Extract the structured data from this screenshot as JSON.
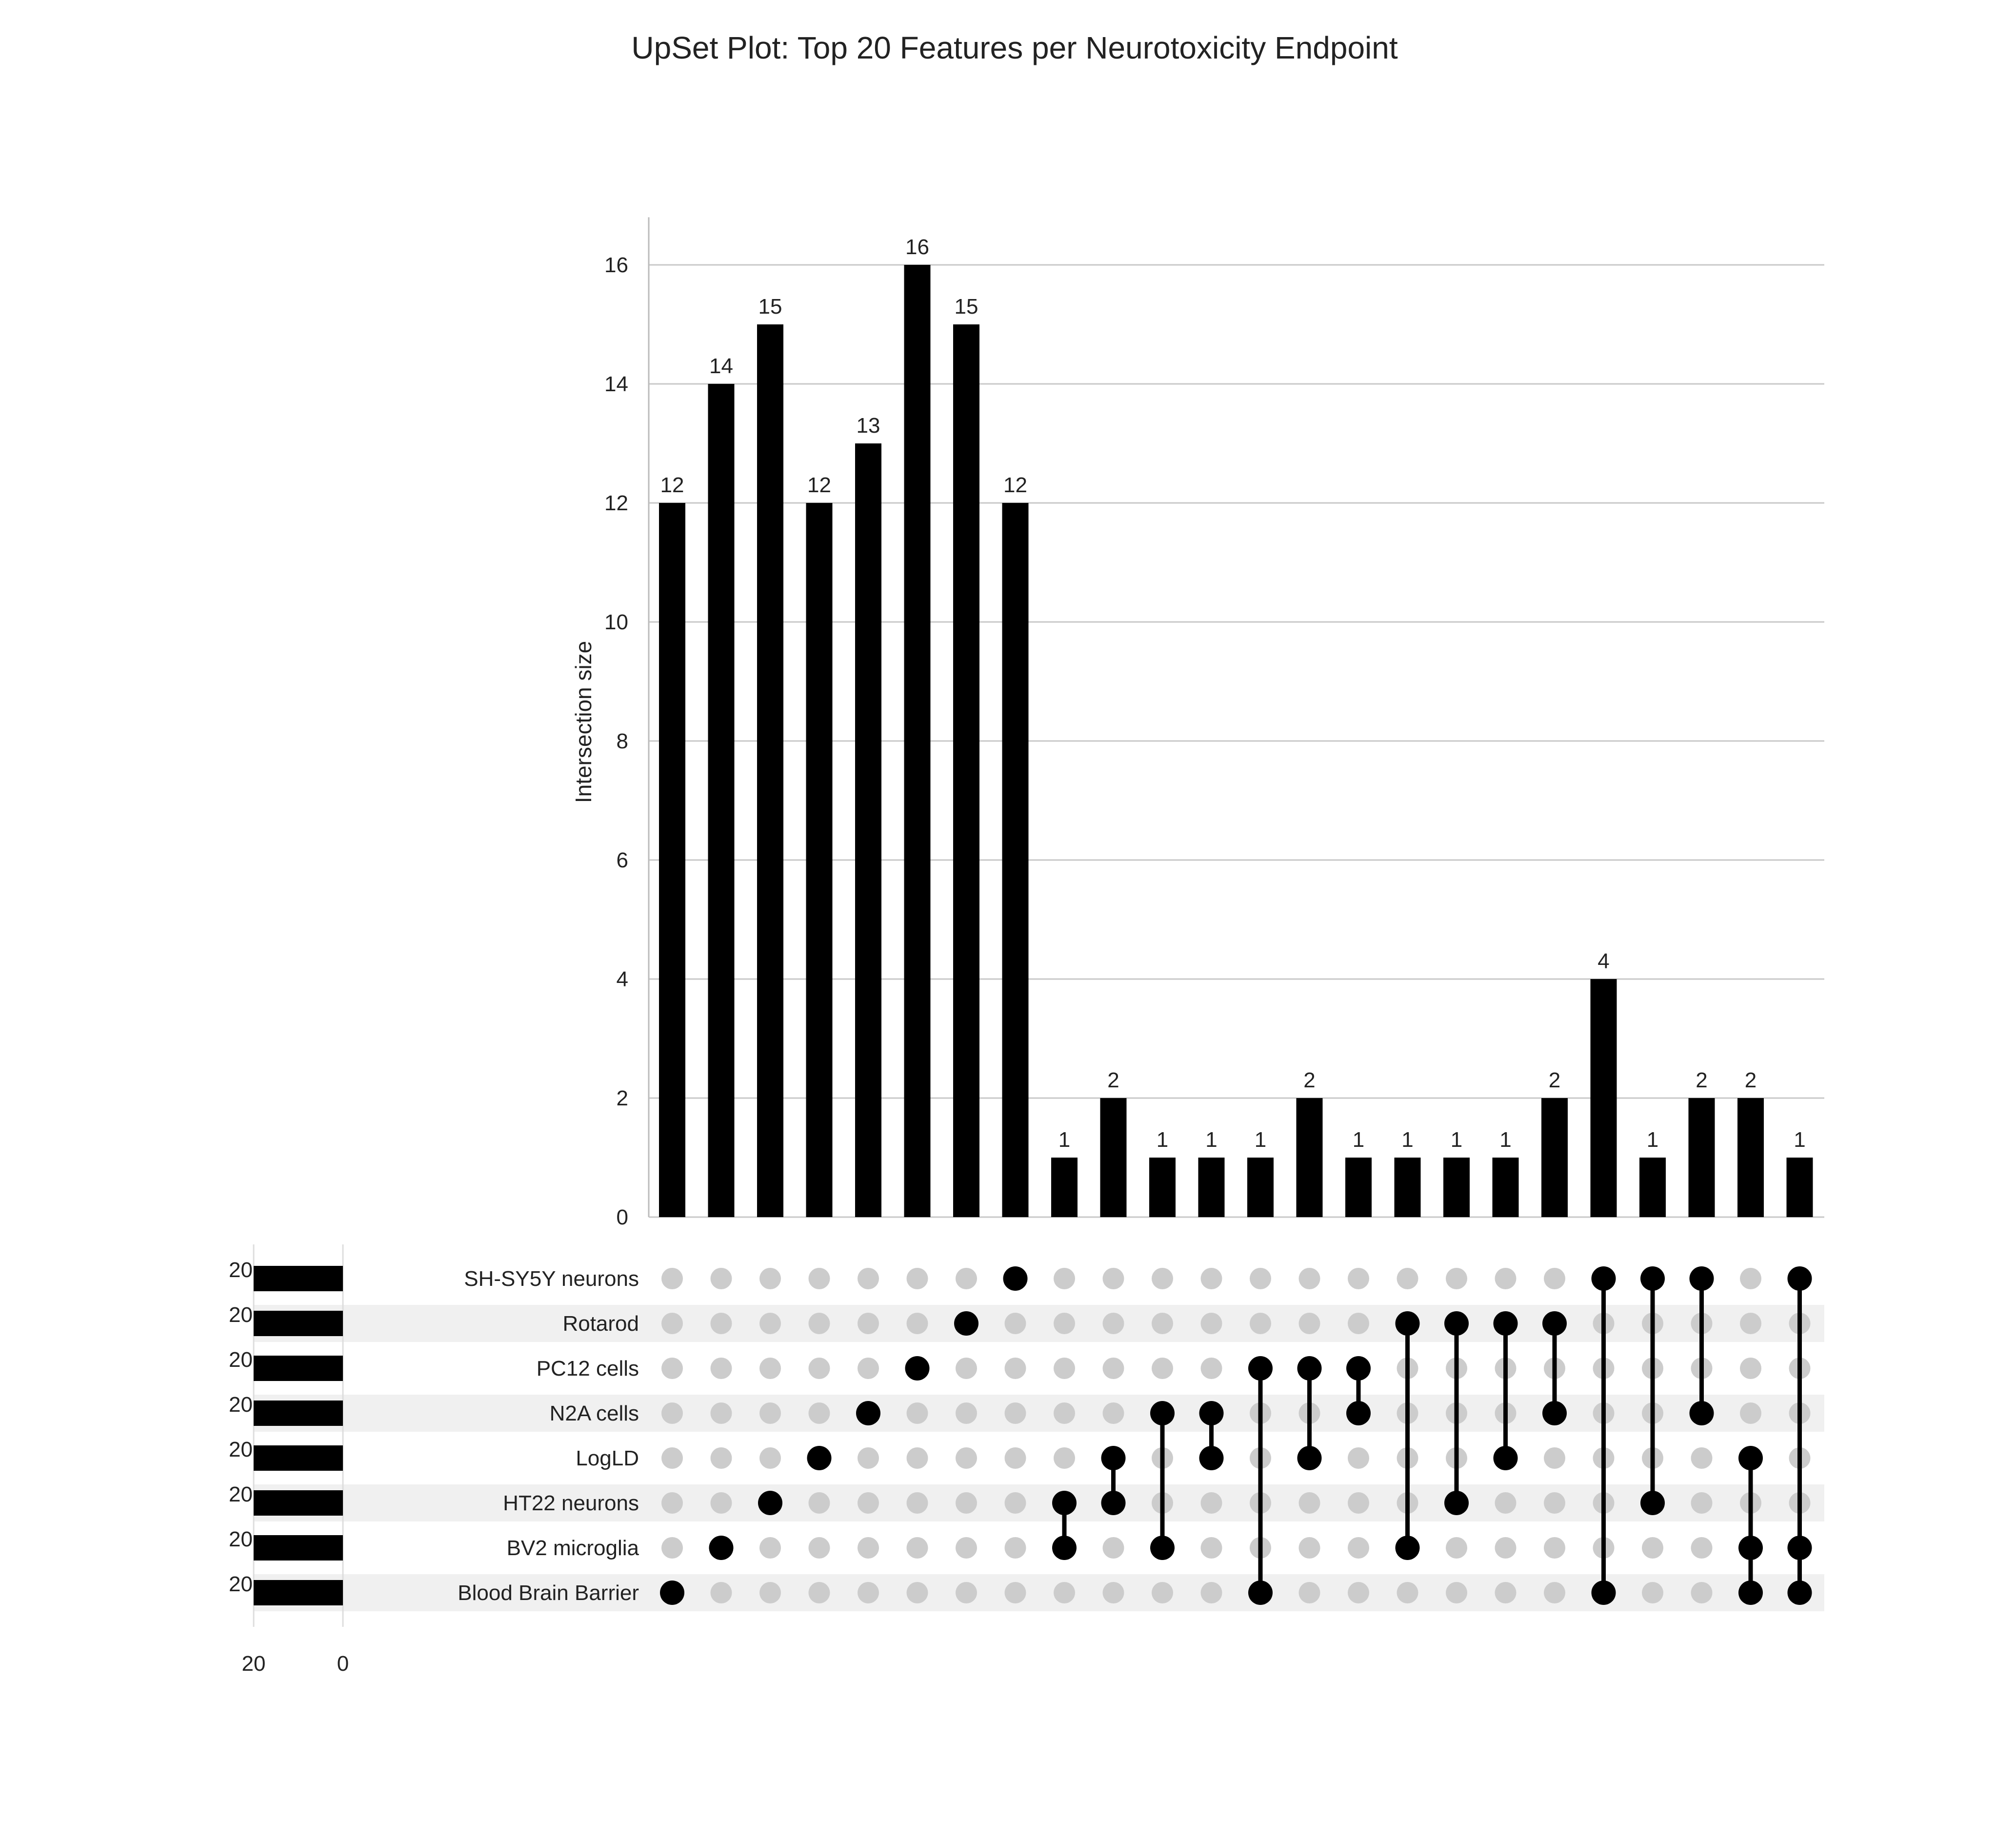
{
  "chart_data": {
    "type": "upset",
    "title": "UpSet Plot: Top 20 Features per Neurotoxicity Endpoint",
    "ylabel": "Intersection size",
    "ylim": [
      0,
      16.8
    ],
    "yticks": [
      0,
      2,
      4,
      6,
      8,
      10,
      12,
      14,
      16
    ],
    "grid": true,
    "sets": [
      "SH-SY5Y neurons",
      "Rotarod",
      "PC12 cells",
      "N2A cells",
      "LogLD",
      "HT22 neurons",
      "BV2 microglia",
      "Blood Brain Barrier"
    ],
    "set_sizes": [
      20,
      20,
      20,
      20,
      20,
      20,
      20,
      20
    ],
    "set_size_axis_ticks": [
      20,
      0
    ],
    "intersections": [
      {
        "sets": [
          "Blood Brain Barrier"
        ],
        "size": 12
      },
      {
        "sets": [
          "BV2 microglia"
        ],
        "size": 14
      },
      {
        "sets": [
          "HT22 neurons"
        ],
        "size": 15
      },
      {
        "sets": [
          "LogLD"
        ],
        "size": 12
      },
      {
        "sets": [
          "N2A cells"
        ],
        "size": 13
      },
      {
        "sets": [
          "PC12 cells"
        ],
        "size": 16
      },
      {
        "sets": [
          "Rotarod"
        ],
        "size": 15
      },
      {
        "sets": [
          "SH-SY5Y neurons"
        ],
        "size": 12
      },
      {
        "sets": [
          "HT22 neurons",
          "BV2 microglia"
        ],
        "size": 1
      },
      {
        "sets": [
          "LogLD",
          "HT22 neurons"
        ],
        "size": 2
      },
      {
        "sets": [
          "N2A cells",
          "BV2 microglia"
        ],
        "size": 1
      },
      {
        "sets": [
          "N2A cells",
          "LogLD"
        ],
        "size": 1
      },
      {
        "sets": [
          "PC12 cells",
          "Blood Brain Barrier"
        ],
        "size": 1
      },
      {
        "sets": [
          "PC12 cells",
          "LogLD"
        ],
        "size": 2
      },
      {
        "sets": [
          "PC12 cells",
          "N2A cells"
        ],
        "size": 1
      },
      {
        "sets": [
          "Rotarod",
          "BV2 microglia"
        ],
        "size": 1
      },
      {
        "sets": [
          "Rotarod",
          "HT22 neurons"
        ],
        "size": 1
      },
      {
        "sets": [
          "Rotarod",
          "LogLD"
        ],
        "size": 1
      },
      {
        "sets": [
          "Rotarod",
          "N2A cells"
        ],
        "size": 2
      },
      {
        "sets": [
          "SH-SY5Y neurons",
          "Blood Brain Barrier"
        ],
        "size": 4
      },
      {
        "sets": [
          "SH-SY5Y neurons",
          "HT22 neurons"
        ],
        "size": 1
      },
      {
        "sets": [
          "SH-SY5Y neurons",
          "N2A cells"
        ],
        "size": 2
      },
      {
        "sets": [
          "LogLD",
          "BV2 microglia",
          "Blood Brain Barrier"
        ],
        "size": 2
      },
      {
        "sets": [
          "SH-SY5Y neurons",
          "BV2 microglia",
          "Blood Brain Barrier"
        ],
        "size": 1
      }
    ],
    "colors": {
      "bar": "#000000",
      "dot_active": "#000000",
      "dot_inactive": "#cccccc",
      "grid": "#c8c8c8",
      "stripe": "#f0f0f0"
    }
  }
}
